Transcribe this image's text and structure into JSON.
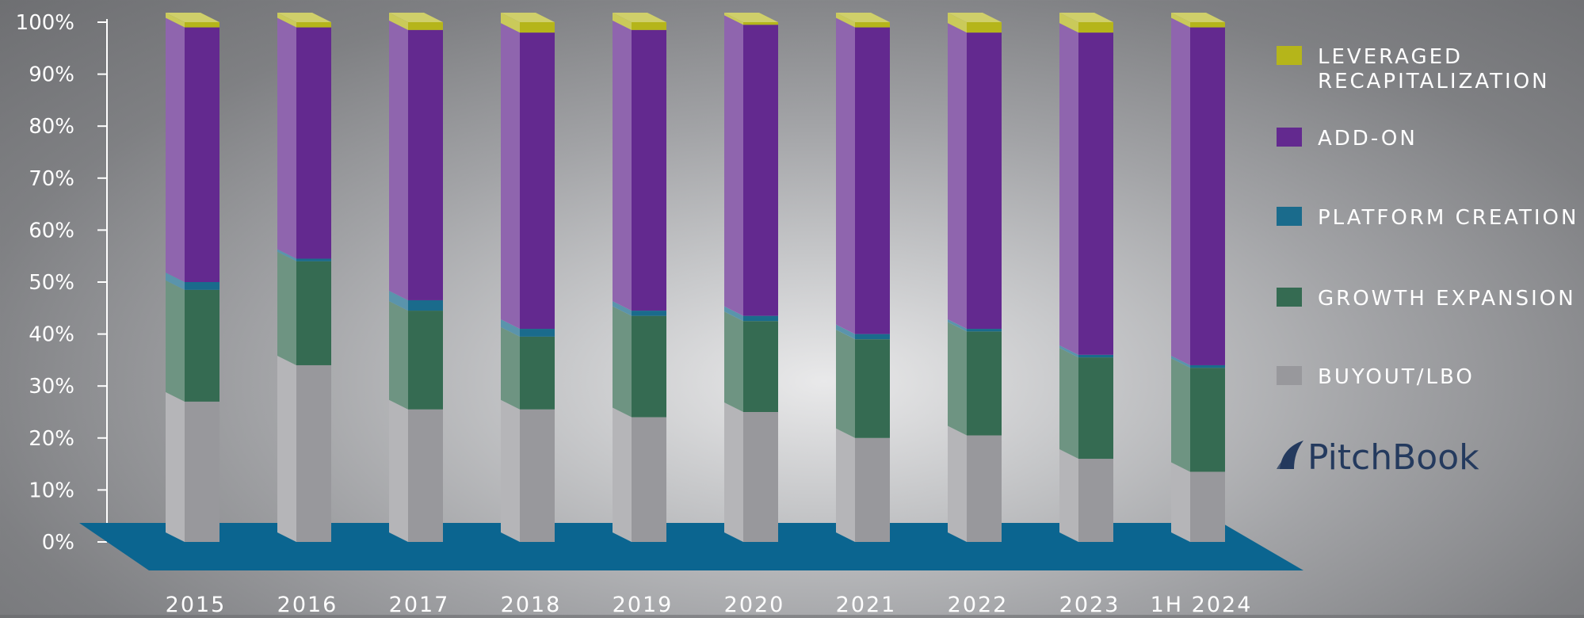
{
  "colors": {
    "leveraged_recap": "#b5b51a",
    "add_on": "#63298f",
    "platform_creation": "#1a6b8c",
    "growth_expansion": "#356b52",
    "buyout_lbo": "#98989c",
    "floor": "#0b6590",
    "brand": "#243a5e"
  },
  "legend": [
    {
      "key": "leveraged_recap",
      "lines": [
        "LEVERAGED",
        "RECAPITALIZATION"
      ]
    },
    {
      "key": "add_on",
      "lines": [
        "ADD-ON"
      ]
    },
    {
      "key": "platform_creation",
      "lines": [
        "PLATFORM CREATION"
      ]
    },
    {
      "key": "growth_expansion",
      "lines": [
        "GROWTH EXPANSION"
      ]
    },
    {
      "key": "buyout_lbo",
      "lines": [
        "BUYOUT/LBO"
      ]
    }
  ],
  "brand": {
    "name": "PitchBook",
    "icon": "pitchbook-sail-icon"
  },
  "chart_data": {
    "type": "bar",
    "stacked": true,
    "three_d": true,
    "categories": [
      "2015",
      "2016",
      "2017",
      "2018",
      "2019",
      "2020",
      "2021",
      "2022",
      "2023",
      "1H 2024"
    ],
    "ylim": [
      0,
      100
    ],
    "yticks": [
      "0%",
      "10%",
      "20%",
      "30%",
      "40%",
      "50%",
      "60%",
      "70%",
      "80%",
      "90%",
      "100%"
    ],
    "legend_position": "right",
    "series": [
      {
        "name": "BUYOUT/LBO",
        "key": "buyout_lbo",
        "values": [
          27,
          34,
          25.5,
          25.5,
          24,
          25,
          20,
          20.5,
          16,
          13.5
        ]
      },
      {
        "name": "GROWTH EXPANSION",
        "key": "growth_expansion",
        "values": [
          21.5,
          20,
          19,
          14,
          19.5,
          17.5,
          19,
          20,
          19.5,
          20
        ]
      },
      {
        "name": "PLATFORM CREATION",
        "key": "platform_creation",
        "values": [
          1.5,
          0.5,
          2,
          1.5,
          1,
          1,
          1,
          0.5,
          0.5,
          0.5
        ]
      },
      {
        "name": "ADD-ON",
        "key": "add_on",
        "values": [
          49,
          44.5,
          52,
          57,
          54,
          56,
          59,
          57,
          62,
          65
        ]
      },
      {
        "name": "LEVERAGED RECAPITALIZATION",
        "key": "leveraged_recap",
        "values": [
          1,
          1,
          1.5,
          2,
          1.5,
          0.5,
          1,
          2,
          2,
          1
        ]
      }
    ]
  }
}
